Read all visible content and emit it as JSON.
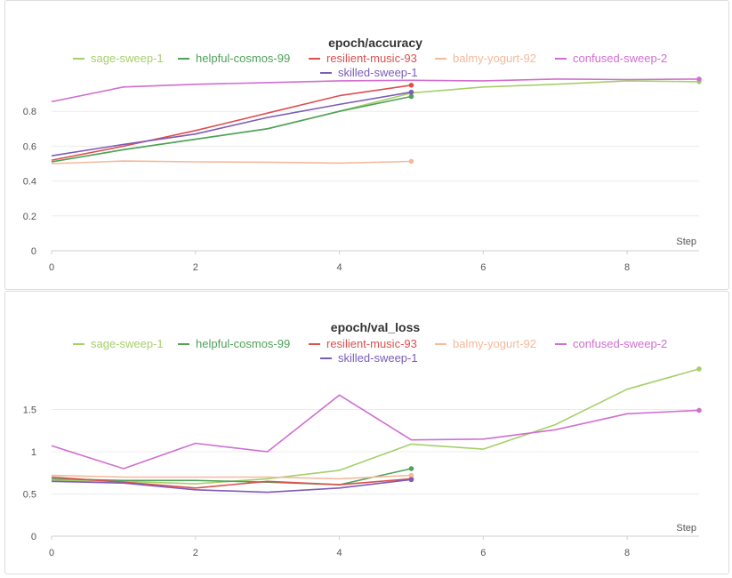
{
  "chart_data": [
    {
      "type": "line",
      "title": "epoch/accuracy",
      "xlabel": "Step",
      "ylabel": "",
      "xlim": [
        0,
        9
      ],
      "ylim": [
        0,
        1.0
      ],
      "xticks": [
        0,
        2,
        4,
        6,
        8
      ],
      "yticks": [
        0,
        0.2,
        0.4,
        0.6,
        0.8
      ],
      "ytick_labels": [
        "0",
        "0.2",
        "0.4",
        "0.6",
        "0.8"
      ],
      "grid": true,
      "legend_position": "top",
      "series": [
        {
          "name": "sage-sweep-1",
          "color": "#a6cf6b",
          "x": [
            0,
            1,
            2,
            3,
            4,
            5,
            6,
            7,
            8,
            9
          ],
          "y": [
            0.51,
            0.58,
            0.64,
            0.7,
            0.8,
            0.905,
            0.94,
            0.955,
            0.975,
            0.97
          ]
        },
        {
          "name": "helpful-cosmos-99",
          "color": "#4fa25a",
          "x": [
            0,
            1,
            2,
            3,
            4,
            5
          ],
          "y": [
            0.51,
            0.58,
            0.64,
            0.7,
            0.8,
            0.885
          ]
        },
        {
          "name": "resilient-music-93",
          "color": "#de4f4f",
          "x": [
            0,
            1,
            2,
            3,
            4,
            5
          ],
          "y": [
            0.52,
            0.6,
            0.69,
            0.79,
            0.89,
            0.95
          ]
        },
        {
          "name": "balmy-yogurt-92",
          "color": "#f5b99c",
          "x": [
            0,
            1,
            2,
            3,
            4,
            5
          ],
          "y": [
            0.5,
            0.515,
            0.51,
            0.508,
            0.503,
            0.513
          ]
        },
        {
          "name": "confused-sweep-2",
          "color": "#cf6fcf",
          "x": [
            0,
            1,
            2,
            3,
            4,
            5,
            6,
            7,
            8,
            9
          ],
          "y": [
            0.855,
            0.94,
            0.955,
            0.965,
            0.975,
            0.978,
            0.975,
            0.985,
            0.982,
            0.985
          ]
        },
        {
          "name": "skilled-sweep-1",
          "color": "#7d5cb8",
          "x": [
            0,
            1,
            2,
            3,
            4,
            5
          ],
          "y": [
            0.545,
            0.61,
            0.67,
            0.765,
            0.84,
            0.91
          ]
        }
      ]
    },
    {
      "type": "line",
      "title": "epoch/val_loss",
      "xlabel": "Step",
      "ylabel": "",
      "xlim": [
        0,
        9
      ],
      "ylim": [
        0,
        2.0
      ],
      "xticks": [
        0,
        2,
        4,
        6,
        8
      ],
      "yticks": [
        0,
        0.5,
        1,
        1.5
      ],
      "ytick_labels": [
        "0",
        "0.5",
        "1",
        "1.5"
      ],
      "grid": true,
      "legend_position": "top",
      "series": [
        {
          "name": "sage-sweep-1",
          "color": "#a6cf6b",
          "x": [
            0,
            1,
            2,
            3,
            4,
            5,
            6,
            7,
            8,
            9
          ],
          "y": [
            0.66,
            0.65,
            0.62,
            0.68,
            0.78,
            1.09,
            1.03,
            1.32,
            1.74,
            1.98
          ]
        },
        {
          "name": "helpful-cosmos-99",
          "color": "#4fa25a",
          "x": [
            0,
            1,
            2,
            3,
            4,
            5
          ],
          "y": [
            0.68,
            0.66,
            0.66,
            0.64,
            0.61,
            0.8
          ]
        },
        {
          "name": "resilient-music-93",
          "color": "#de4f4f",
          "x": [
            0,
            1,
            2,
            3,
            4,
            5
          ],
          "y": [
            0.7,
            0.64,
            0.57,
            0.65,
            0.61,
            0.68
          ]
        },
        {
          "name": "balmy-yogurt-92",
          "color": "#f5b99c",
          "x": [
            0,
            1,
            2,
            3,
            4,
            5
          ],
          "y": [
            0.72,
            0.7,
            0.7,
            0.7,
            0.68,
            0.72
          ]
        },
        {
          "name": "confused-sweep-2",
          "color": "#cf6fcf",
          "x": [
            0,
            1,
            2,
            3,
            4,
            5,
            6,
            7,
            8,
            9
          ],
          "y": [
            1.07,
            0.8,
            1.1,
            1.0,
            1.67,
            1.14,
            1.15,
            1.26,
            1.45,
            1.49
          ]
        },
        {
          "name": "skilled-sweep-1",
          "color": "#7d5cb8",
          "x": [
            0,
            1,
            2,
            3,
            4,
            5
          ],
          "y": [
            0.65,
            0.63,
            0.55,
            0.52,
            0.57,
            0.67
          ]
        }
      ]
    }
  ]
}
